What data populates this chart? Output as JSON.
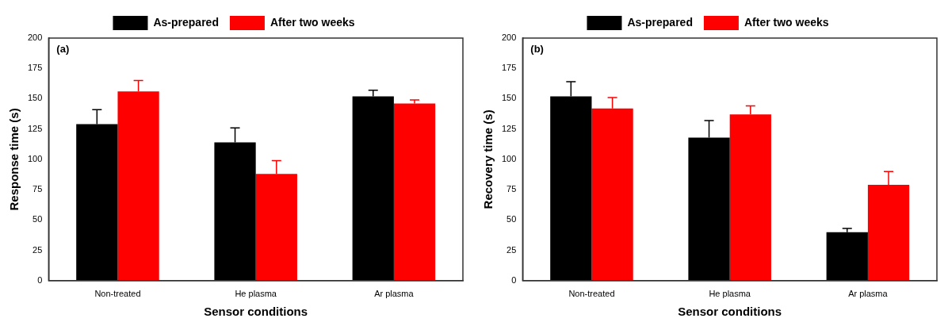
{
  "chart_data": [
    {
      "type": "bar",
      "annotations": [
        "(a)"
      ],
      "xlabel": "Sensor conditions",
      "ylabel": "Response time (s)",
      "categories": [
        "Non-treated",
        "He plasma",
        "Ar plasma"
      ],
      "series": [
        {
          "name": "As-prepared",
          "color": "#000000",
          "values": [
            129,
            114,
            152
          ],
          "errors": [
            [
              129,
              141
            ],
            [
              114,
              126
            ],
            [
              152,
              157
            ]
          ]
        },
        {
          "name": "After two weeks",
          "color": "#ff0000",
          "values": [
            156,
            88,
            146
          ],
          "errors": [
            [
              156,
              165
            ],
            [
              88,
              99
            ],
            [
              146,
              149
            ]
          ]
        }
      ],
      "ylim": [
        0,
        200
      ],
      "yticks": [
        0,
        25,
        50,
        75,
        100,
        125,
        150,
        175,
        200
      ],
      "grid": false,
      "legend": "top"
    },
    {
      "type": "bar",
      "annotations": [
        "(b)"
      ],
      "xlabel": "Sensor conditions",
      "ylabel": "Recovery time (s)",
      "categories": [
        "Non-treated",
        "He plasma",
        "Ar plasma"
      ],
      "series": [
        {
          "name": "As-prepared",
          "color": "#000000",
          "values": [
            152,
            118,
            40
          ],
          "errors": [
            [
              152,
              164
            ],
            [
              118,
              132
            ],
            [
              40,
              43
            ]
          ]
        },
        {
          "name": "After two weeks",
          "color": "#ff0000",
          "values": [
            142,
            137,
            79
          ],
          "errors": [
            [
              142,
              151
            ],
            [
              137,
              144
            ],
            [
              79,
              90
            ]
          ]
        }
      ],
      "ylim": [
        0,
        200
      ],
      "yticks": [
        0,
        25,
        50,
        75,
        100,
        125,
        150,
        175,
        200
      ],
      "grid": false,
      "legend": "top"
    }
  ]
}
